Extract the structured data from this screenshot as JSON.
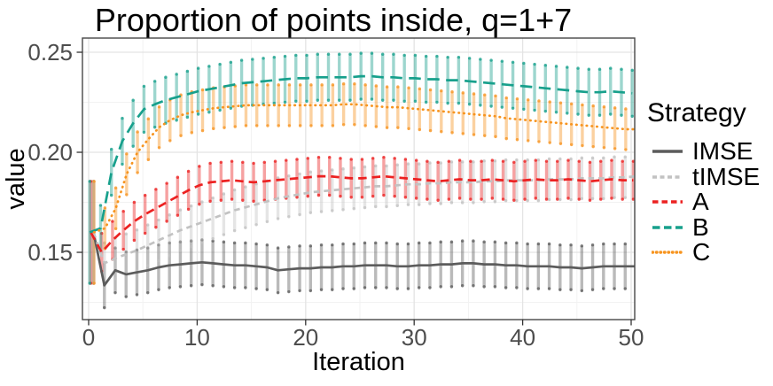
{
  "title": "Proportion of points inside, q=1+7",
  "axes": {
    "x": {
      "label": "Iteration",
      "ticks": [
        "0",
        "10",
        "20",
        "30",
        "40",
        "50"
      ],
      "tick_values": [
        0,
        10,
        20,
        30,
        40,
        50
      ],
      "minor": [
        5,
        15,
        25,
        35,
        45
      ],
      "range": [
        -0.6,
        50.4
      ]
    },
    "y": {
      "label": "value",
      "ticks": [
        "0.15",
        "0.20",
        "0.25"
      ],
      "tick_values": [
        0.15,
        0.2,
        0.25
      ],
      "minor": [
        0.125,
        0.175,
        0.225
      ],
      "range": [
        0.116,
        0.257
      ]
    }
  },
  "legend": {
    "title": "Strategy",
    "position": "right",
    "items": [
      "IMSE",
      "tIMSE",
      "A",
      "B",
      "C"
    ]
  },
  "style": {
    "background": "#ffffff",
    "panel_border": "#474747",
    "grid_major": "#e4e4e4",
    "grid_minor": "#f2f2f2",
    "tick_color": "#333333",
    "tick_label_color": "#4d4d4d",
    "errorbar_opacity": 0.42
  },
  "chart_data": {
    "type": "line",
    "title": "Proportion of points inside, q=1+7",
    "xlabel": "Iteration",
    "ylabel": "value",
    "legend_title": "Strategy",
    "legend_position": "right",
    "grid": true,
    "xlim": [
      -0.6,
      50.4
    ],
    "ylim": [
      0.116,
      0.257
    ],
    "x": [
      0,
      1,
      2,
      3,
      4,
      5,
      6,
      7,
      8,
      9,
      10,
      11,
      12,
      13,
      14,
      15,
      16,
      17,
      18,
      19,
      20,
      21,
      22,
      23,
      24,
      25,
      26,
      27,
      28,
      29,
      30,
      31,
      32,
      33,
      34,
      35,
      36,
      37,
      38,
      39,
      40,
      41,
      42,
      43,
      44,
      45,
      46,
      47,
      48,
      49,
      50
    ],
    "errorbars": "per-point vertical bars; half-width err (err0 at iteration 0, where all strategies share one large bar 0.1345-0.1855)",
    "series": [
      {
        "name": "IMSE",
        "color": "#5c5c5c",
        "linetype": "solid",
        "dodge": 0.45,
        "err": 0.0112,
        "err0": 0.0255,
        "values": [
          0.16,
          0.1335,
          0.141,
          0.139,
          0.14,
          0.141,
          0.1425,
          0.1435,
          0.144,
          0.1445,
          0.145,
          0.1445,
          0.144,
          0.1435,
          0.1435,
          0.143,
          0.1425,
          0.141,
          0.1415,
          0.142,
          0.142,
          0.1425,
          0.1425,
          0.143,
          0.143,
          0.1435,
          0.1435,
          0.1435,
          0.143,
          0.143,
          0.1435,
          0.1435,
          0.144,
          0.144,
          0.1445,
          0.1445,
          0.144,
          0.144,
          0.1435,
          0.1435,
          0.143,
          0.143,
          0.143,
          0.1425,
          0.1425,
          0.142,
          0.1425,
          0.143,
          0.143,
          0.143,
          0.143
        ]
      },
      {
        "name": "tIMSE",
        "color": "#c2c2c2",
        "linetype": "shortdash",
        "dodge": 0.45,
        "err": 0.0102,
        "err0": 0.0255,
        "values": [
          0.16,
          0.1445,
          0.147,
          0.149,
          0.151,
          0.1535,
          0.156,
          0.1585,
          0.161,
          0.163,
          0.165,
          0.167,
          0.169,
          0.171,
          0.1725,
          0.174,
          0.1755,
          0.177,
          0.178,
          0.179,
          0.18,
          0.1805,
          0.181,
          0.1815,
          0.182,
          0.1825,
          0.183,
          0.183,
          0.1835,
          0.184,
          0.184,
          0.1845,
          0.1845,
          0.185,
          0.185,
          0.185,
          0.1855,
          0.1855,
          0.186,
          0.186,
          0.186,
          0.186,
          0.1865,
          0.1865,
          0.1865,
          0.187,
          0.187,
          0.187,
          0.1875,
          0.1875,
          0.188
        ]
      },
      {
        "name": "A",
        "color": "#ec2121",
        "linetype": "dashed",
        "dodge": 0.2,
        "err": 0.0095,
        "err0": 0.0255,
        "values": [
          0.16,
          0.15,
          0.156,
          0.161,
          0.1655,
          0.169,
          0.172,
          0.175,
          0.178,
          0.181,
          0.1835,
          0.185,
          0.1855,
          0.186,
          0.1855,
          0.185,
          0.1855,
          0.186,
          0.1865,
          0.187,
          0.1875,
          0.188,
          0.188,
          0.1875,
          0.187,
          0.187,
          0.1875,
          0.188,
          0.1875,
          0.187,
          0.1865,
          0.186,
          0.1855,
          0.186,
          0.1865,
          0.186,
          0.186,
          0.1865,
          0.186,
          0.1855,
          0.186,
          0.1865,
          0.186,
          0.186,
          0.1865,
          0.186,
          0.1855,
          0.186,
          0.1865,
          0.186,
          0.186
        ]
      },
      {
        "name": "B",
        "color": "#17a08c",
        "linetype": "longdash",
        "dodge": 0.1,
        "err": 0.0115,
        "err0": 0.0255,
        "values": [
          0.16,
          0.162,
          0.19,
          0.2055,
          0.2145,
          0.2215,
          0.224,
          0.226,
          0.2275,
          0.229,
          0.2305,
          0.2315,
          0.2325,
          0.2335,
          0.2345,
          0.235,
          0.2355,
          0.236,
          0.2365,
          0.237,
          0.237,
          0.2375,
          0.2375,
          0.2375,
          0.2375,
          0.238,
          0.238,
          0.2375,
          0.2375,
          0.237,
          0.237,
          0.2365,
          0.2365,
          0.236,
          0.236,
          0.2355,
          0.235,
          0.2345,
          0.234,
          0.2335,
          0.233,
          0.2325,
          0.232,
          0.2315,
          0.231,
          0.2305,
          0.23,
          0.23,
          0.2305,
          0.23,
          0.2295
        ]
      },
      {
        "name": "C",
        "color": "#f7941f",
        "linetype": "dotted",
        "dodge": 0.5,
        "err": 0.0102,
        "err0": 0.0255,
        "values": [
          0.16,
          0.162,
          0.172,
          0.189,
          0.2,
          0.2065,
          0.2125,
          0.216,
          0.2185,
          0.22,
          0.221,
          0.222,
          0.2225,
          0.223,
          0.2235,
          0.2235,
          0.2235,
          0.2235,
          0.2235,
          0.2235,
          0.2235,
          0.2235,
          0.2235,
          0.224,
          0.224,
          0.2235,
          0.223,
          0.2225,
          0.2225,
          0.222,
          0.2215,
          0.221,
          0.2205,
          0.22,
          0.2195,
          0.219,
          0.2185,
          0.218,
          0.217,
          0.2165,
          0.216,
          0.2155,
          0.215,
          0.2145,
          0.214,
          0.2135,
          0.213,
          0.2125,
          0.212,
          0.2115,
          0.2115
        ]
      }
    ]
  }
}
